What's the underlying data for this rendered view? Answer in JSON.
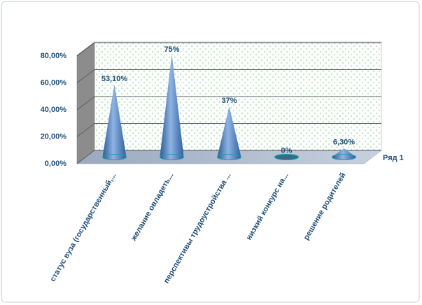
{
  "chart_data": {
    "type": "cone",
    "categories": [
      "статус вуза (государственный,...",
      "желание овладеть...",
      "перспективы  трудоустройства ...",
      "низкий  конкурс на...",
      "решение  родителей"
    ],
    "series": [
      {
        "name": "Ряд 1",
        "color": "#4f81bd",
        "values": [
          53.1,
          75,
          37,
          0,
          6.3
        ],
        "value_labels": [
          "53,10%",
          "75%",
          "37%",
          "0%",
          "6,30%"
        ]
      }
    ],
    "ylim": [
      0,
      80
    ],
    "yticks": [
      {
        "value": 0,
        "label": "0,00%"
      },
      {
        "value": 20,
        "label": "20,00%"
      },
      {
        "value": 40,
        "label": "40,00%"
      },
      {
        "value": 60,
        "label": "60,00%"
      },
      {
        "value": 80,
        "label": "80,00%"
      }
    ],
    "grid": true,
    "legend": "right"
  }
}
